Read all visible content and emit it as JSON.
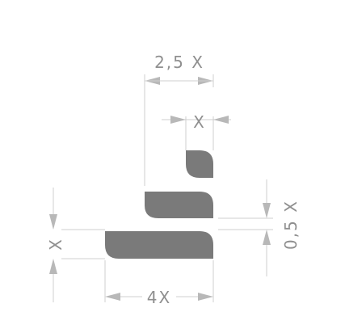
{
  "dimensions": {
    "top_width": "2,5 X",
    "small_width": "X",
    "right_gap": "0,5 X",
    "left_height": "X",
    "bottom_width": "4X"
  },
  "colors": {
    "shape_fill": "#7a7a7a",
    "dimension_text": "#8f8f8f",
    "extension_line": "#cfcfcf",
    "arrow": "#b8b8b8",
    "background": "#ffffff"
  }
}
